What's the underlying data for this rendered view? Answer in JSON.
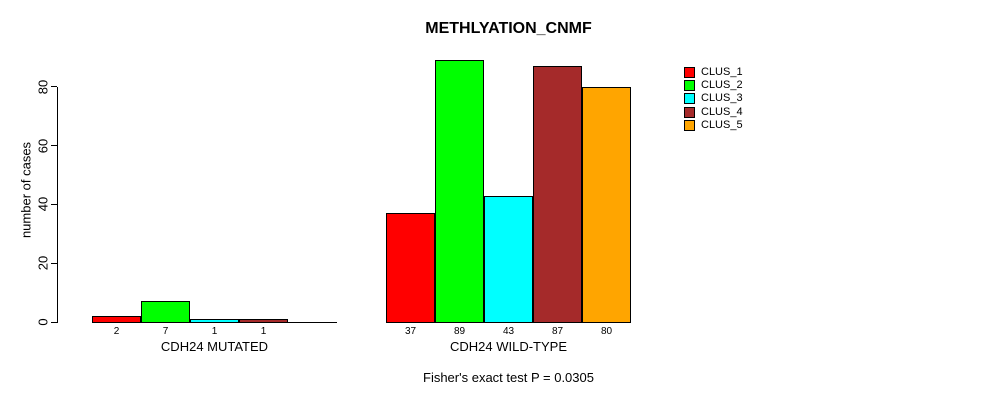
{
  "title": "METHLYATION_CNMF",
  "subtitle": "Fisher's exact test P = 0.0305",
  "ylabel": "number of cases",
  "chart_data": {
    "type": "bar",
    "title": "METHLYATION_CNMF",
    "xlabel": "",
    "ylabel": "number of cases",
    "annotation": "Fisher's exact test P = 0.0305",
    "ylim": [
      0,
      89
    ],
    "yticks": [
      0,
      20,
      40,
      60,
      80
    ],
    "grid": false,
    "legend_position": "right",
    "series": [
      "CLUS_1",
      "CLUS_2",
      "CLUS_3",
      "CLUS_4",
      "CLUS_5"
    ],
    "colors": [
      "#FF0000",
      "#00FF00",
      "#00FFFF",
      "#A52A2A",
      "#FFA500"
    ],
    "bar_border_color": "#000000",
    "groups": [
      {
        "label": "CDH24 MUTATED",
        "values": [
          2,
          7,
          1,
          1,
          0
        ],
        "value_labels": [
          "2",
          "7",
          "1",
          "1",
          ""
        ]
      },
      {
        "label": "CDH24 WILD-TYPE",
        "values": [
          37,
          89,
          43,
          87,
          80
        ],
        "value_labels": [
          "37",
          "89",
          "43",
          "87",
          "80"
        ]
      }
    ]
  }
}
